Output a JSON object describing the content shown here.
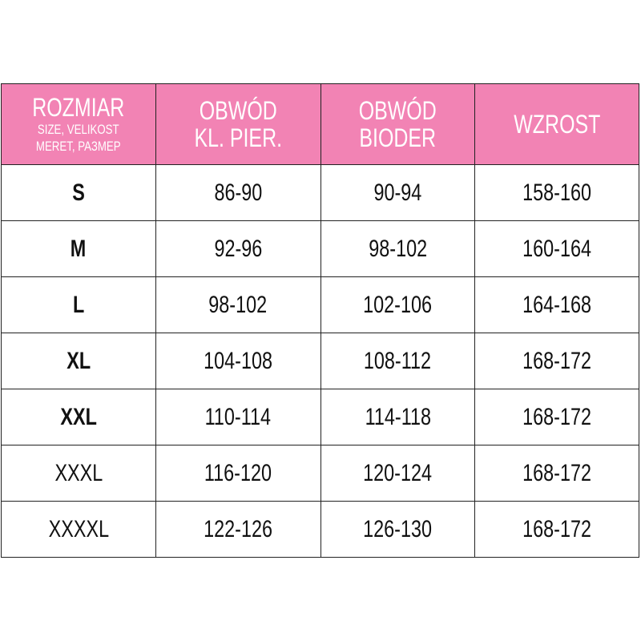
{
  "colors": {
    "header_bg": "#f283b4",
    "header_text": "#ffffff"
  },
  "headers": [
    {
      "line1": "ROZMIAR",
      "line2": "SIZE, VELIKOST",
      "line3": "MERET, РАЗМЕР"
    },
    {
      "line1": "OBWÓD",
      "line2": "KL. PIER."
    },
    {
      "line1": "OBWÓD",
      "line2": "BIODER"
    },
    {
      "line1": "WZROST"
    }
  ],
  "rows": [
    {
      "size": "S",
      "chest": "86-90",
      "hips": "90-94",
      "height": "158-160",
      "bold": true
    },
    {
      "size": "M",
      "chest": "92-96",
      "hips": "98-102",
      "height": "160-164",
      "bold": true
    },
    {
      "size": "L",
      "chest": "98-102",
      "hips": "102-106",
      "height": "164-168",
      "bold": true
    },
    {
      "size": "XL",
      "chest": "104-108",
      "hips": "108-112",
      "height": "168-172",
      "bold": true
    },
    {
      "size": "XXL",
      "chest": "110-114",
      "hips": "114-118",
      "height": "168-172",
      "bold": true
    },
    {
      "size": "XXXL",
      "chest": "116-120",
      "hips": "120-124",
      "height": "168-172",
      "bold": false
    },
    {
      "size": "XXXXL",
      "chest": "122-126",
      "hips": "126-130",
      "height": "168-172",
      "bold": false
    }
  ]
}
